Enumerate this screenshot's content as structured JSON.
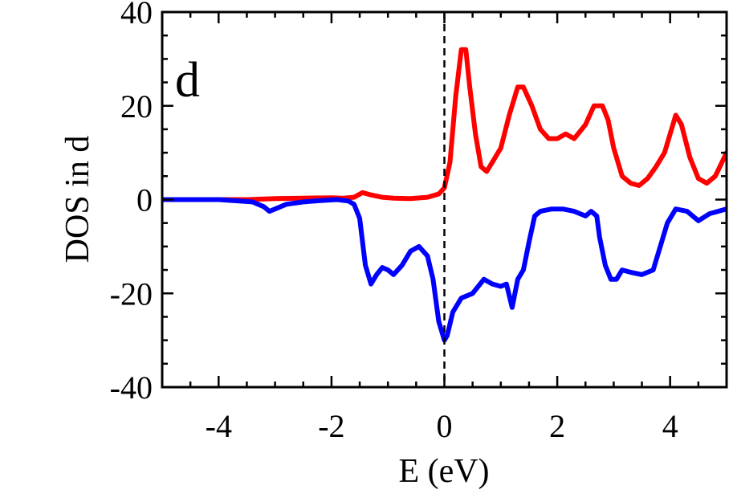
{
  "chart_data": {
    "type": "line",
    "panel_label": "d",
    "xlabel": "E (eV)",
    "ylabel": "DOS in d",
    "xlim": [
      -5,
      5
    ],
    "ylim": [
      -40,
      40
    ],
    "xticks": [
      -4,
      -2,
      0,
      2,
      4
    ],
    "yticks": [
      -40,
      -20,
      0,
      20,
      40
    ],
    "x_tick_labels": [
      "-4",
      "-2",
      "0",
      "2",
      "4"
    ],
    "y_tick_labels": [
      "-40",
      "-20",
      "0",
      "20",
      "40"
    ],
    "grid": false,
    "fermi_line_x": 0,
    "series": [
      {
        "color": "#ff0000",
        "x": [
          -5,
          -4.5,
          -4,
          -3.5,
          -3,
          -2.5,
          -2,
          -1.8,
          -1.6,
          -1.45,
          -1.3,
          -1.1,
          -0.9,
          -0.6,
          -0.3,
          -0.1,
          0,
          0.1,
          0.2,
          0.3,
          0.38,
          0.45,
          0.55,
          0.65,
          0.75,
          0.85,
          1.0,
          1.15,
          1.3,
          1.4,
          1.55,
          1.7,
          1.85,
          2.0,
          2.15,
          2.3,
          2.5,
          2.65,
          2.8,
          2.9,
          3.0,
          3.15,
          3.3,
          3.45,
          3.6,
          3.75,
          3.9,
          4.0,
          4.1,
          4.2,
          4.35,
          4.5,
          4.65,
          4.8,
          4.9,
          5.0
        ],
        "y": [
          0,
          0,
          0,
          0,
          0.2,
          0.3,
          0.4,
          0.3,
          0.5,
          1.5,
          1.0,
          0.5,
          0.3,
          0.2,
          0.5,
          1.2,
          2.5,
          8,
          22,
          32,
          32,
          24,
          14,
          7,
          6,
          8,
          11,
          18,
          24,
          24,
          20,
          15,
          13,
          13,
          14,
          13,
          16,
          20,
          20,
          17,
          11,
          5,
          3.5,
          3,
          4.5,
          7,
          10,
          14,
          18,
          16,
          9,
          4.5,
          3.5,
          5,
          7.5,
          10
        ]
      },
      {
        "color": "#0000ff",
        "x": [
          -5,
          -4,
          -3.4,
          -3.2,
          -3.1,
          -3.0,
          -2.8,
          -2.5,
          -2.2,
          -1.9,
          -1.7,
          -1.6,
          -1.5,
          -1.4,
          -1.3,
          -1.2,
          -1.1,
          -1.0,
          -0.9,
          -0.75,
          -0.6,
          -0.45,
          -0.3,
          -0.2,
          -0.1,
          0,
          0.05,
          0.15,
          0.3,
          0.5,
          0.7,
          0.85,
          1.0,
          1.1,
          1.2,
          1.3,
          1.4,
          1.5,
          1.6,
          1.7,
          1.9,
          2.1,
          2.3,
          2.5,
          2.6,
          2.7,
          2.75,
          2.85,
          2.95,
          3.05,
          3.15,
          3.3,
          3.5,
          3.7,
          3.85,
          3.95,
          4.1,
          4.3,
          4.5,
          4.7,
          5.0
        ],
        "y": [
          0,
          0,
          -0.5,
          -1.5,
          -2.5,
          -2,
          -1,
          -0.5,
          -0.2,
          0,
          -0.3,
          -1,
          -4,
          -14,
          -18,
          -16,
          -14.5,
          -15,
          -16,
          -14,
          -11,
          -10,
          -12,
          -17,
          -26,
          -30,
          -29,
          -24,
          -21,
          -20,
          -17,
          -18,
          -18.5,
          -18,
          -23,
          -17,
          -15,
          -9,
          -3.5,
          -2.5,
          -2,
          -2,
          -2.5,
          -3.5,
          -2.5,
          -3.5,
          -8,
          -14,
          -17,
          -17,
          -15,
          -15.5,
          -16,
          -15,
          -9,
          -5,
          -2,
          -2.5,
          -4.5,
          -3,
          -2
        ]
      }
    ]
  }
}
